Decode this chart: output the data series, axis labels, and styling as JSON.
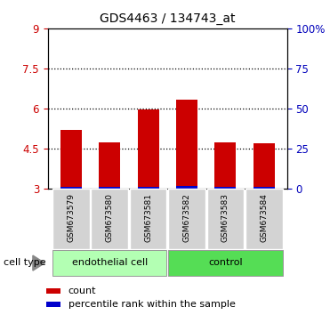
{
  "title": "GDS4463 / 134743_at",
  "samples": [
    "GSM673579",
    "GSM673580",
    "GSM673581",
    "GSM673582",
    "GSM673583",
    "GSM673584"
  ],
  "red_values": [
    5.2,
    4.75,
    5.97,
    6.35,
    4.75,
    4.7
  ],
  "blue_values": [
    3.09,
    3.07,
    3.09,
    3.11,
    3.08,
    3.07
  ],
  "ylim_left": [
    3,
    9
  ],
  "ylim_right": [
    0,
    100
  ],
  "yticks_left": [
    3,
    4.5,
    6,
    7.5,
    9
  ],
  "ytick_labels_left": [
    "3",
    "4.5",
    "6",
    "7.5",
    "9"
  ],
  "yticks_right": [
    0,
    25,
    50,
    75,
    100
  ],
  "ytick_labels_right": [
    "0",
    "25",
    "50",
    "75",
    "100%"
  ],
  "gridlines": [
    4.5,
    6,
    7.5
  ],
  "group1_label": "endothelial cell",
  "group2_label": "control",
  "group1_color": "#b3ffb3",
  "group2_color": "#55dd55",
  "cell_type_label": "cell type",
  "legend_red": "count",
  "legend_blue": "percentile rank within the sample",
  "bar_width": 0.55,
  "red_color": "#cc0000",
  "blue_color": "#0000cc",
  "bar_bottom": 3.0,
  "tick_label_color_left": "#cc0000",
  "tick_label_color_right": "#0000bb"
}
